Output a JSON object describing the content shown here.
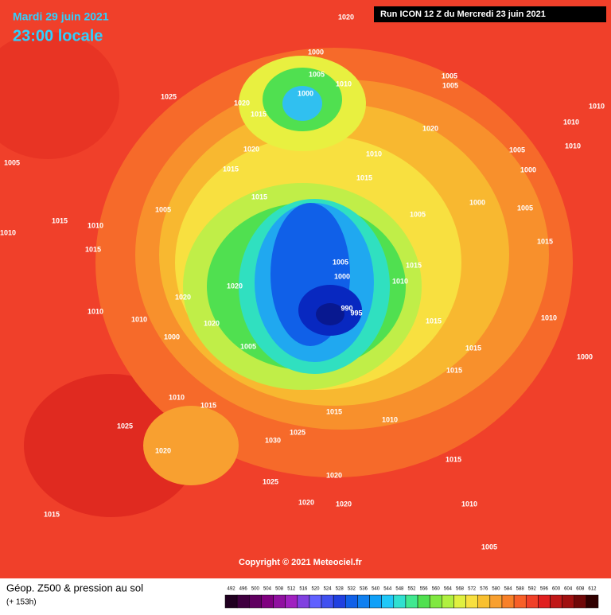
{
  "header": {
    "date": "Mardi 29 juin 2021",
    "time": "23:00 locale",
    "run": "Run ICON 12 Z du Mercredi 23 juin 2021"
  },
  "map": {
    "pressure_labels": [
      1020,
      1000,
      1005,
      1010,
      1000,
      1025,
      1020,
      1015,
      1005,
      1005,
      1010,
      1020,
      1010,
      1010,
      1020,
      1015,
      1015,
      1005,
      1000,
      1010,
      1015,
      1005,
      1000,
      1005,
      1015,
      1005,
      1000,
      1015,
      1010,
      1020,
      1020,
      990,
      995,
      1010,
      1010,
      1015,
      1020,
      1005,
      1000,
      1015,
      1015,
      1000,
      1010,
      1015,
      1015,
      1010,
      1025,
      1030,
      1025,
      1020,
      1025,
      1020,
      1020,
      1020,
      1015,
      1015,
      1010,
      1005,
      1015,
      1005,
      1010,
      1015,
      1010,
      1005,
      1015,
      1010
    ]
  },
  "copyright": "Copyright © 2021 Meteociel.fr",
  "footer": {
    "title": "Géop. Z500 & pression au sol",
    "lead": "(+ 153h)",
    "scale": [
      492,
      496,
      500,
      504,
      508,
      512,
      516,
      520,
      524,
      528,
      532,
      536,
      540,
      544,
      548,
      552,
      556,
      560,
      564,
      568,
      572,
      576,
      580,
      584,
      588,
      592,
      596,
      600,
      604,
      608,
      612
    ]
  }
}
